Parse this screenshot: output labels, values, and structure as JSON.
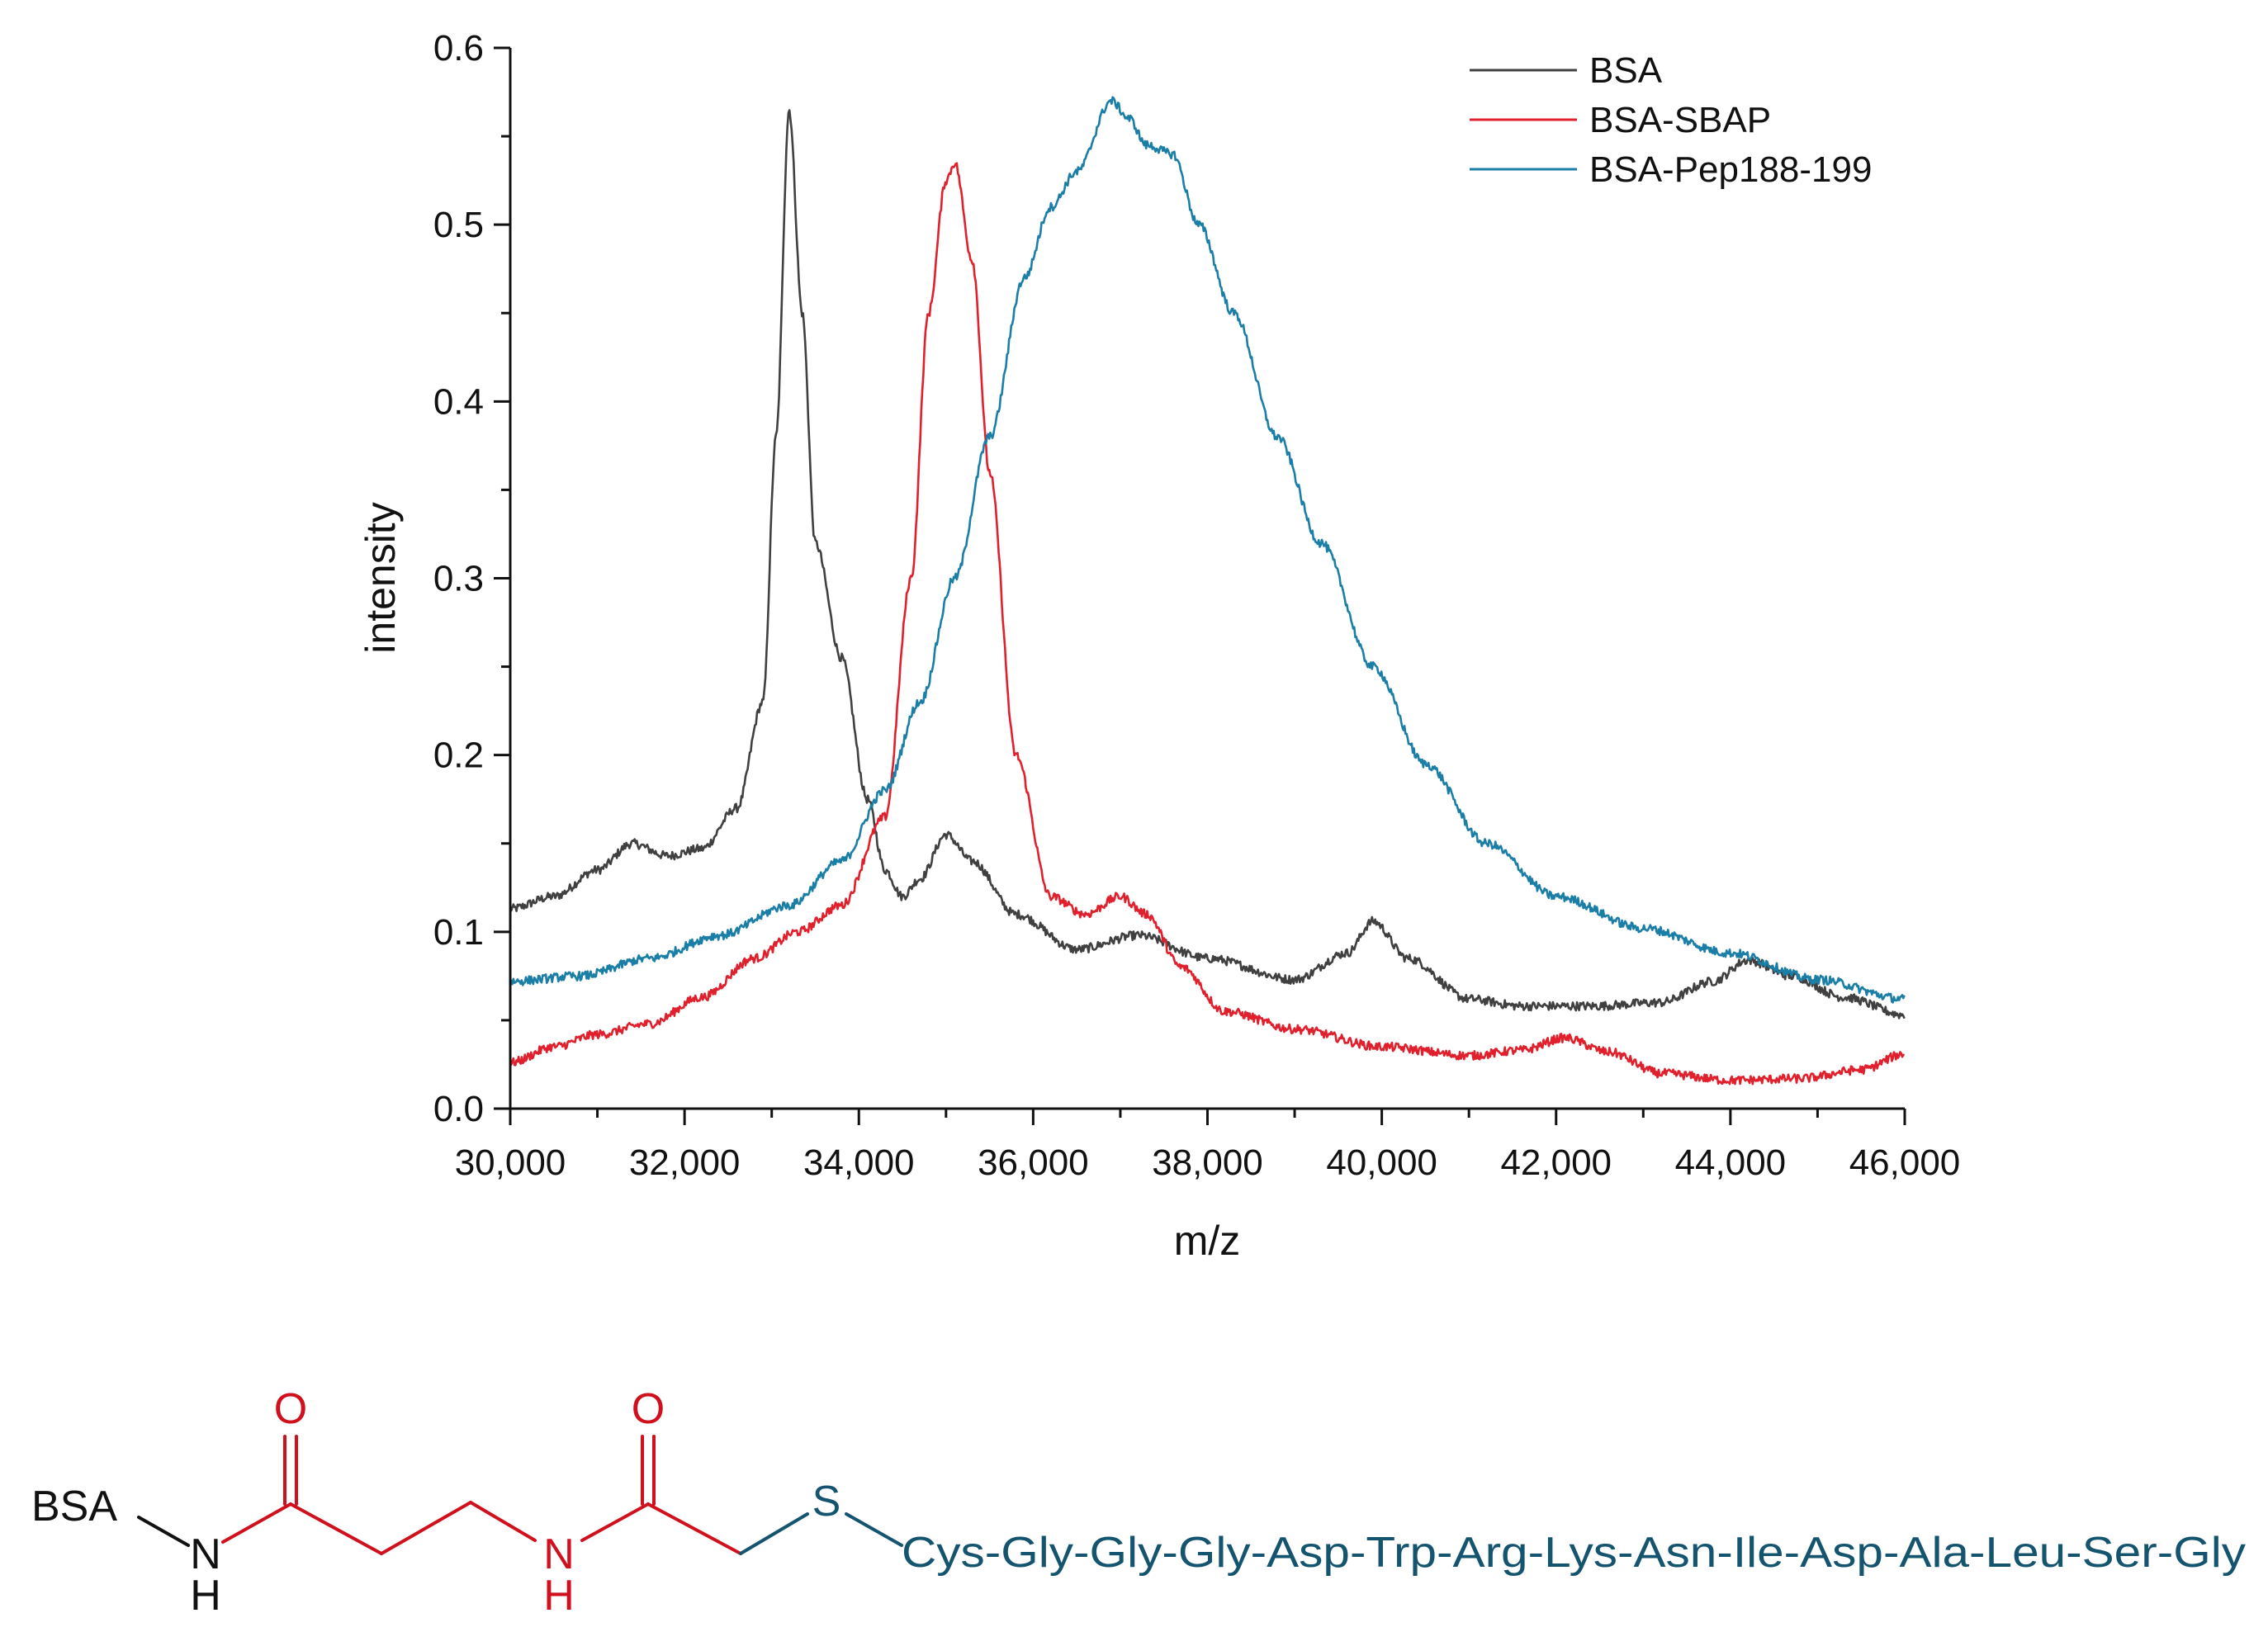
{
  "chart_data": {
    "type": "line",
    "title": "",
    "xlabel": "m/z",
    "ylabel": "intensity",
    "xlim": [
      30000,
      46000
    ],
    "ylim": [
      0,
      0.6
    ],
    "grid": false,
    "legend_position": "top-right",
    "xticks": [
      30000,
      32000,
      34000,
      36000,
      38000,
      40000,
      42000,
      44000,
      46000
    ],
    "xtick_labels": [
      "30,000",
      "32,000",
      "34,000",
      "36,000",
      "38,000",
      "40,000",
      "42,000",
      "44,000",
      "46,000"
    ],
    "yticks": [
      0.0,
      0.1,
      0.2,
      0.3,
      0.4,
      0.5,
      0.6
    ],
    "ytick_labels": [
      "0.0",
      "0.1",
      "0.2",
      "0.3",
      "0.4",
      "0.5",
      "0.6"
    ],
    "series": [
      {
        "name": "BSA",
        "color": "#404040",
        "x": [
          30000,
          30500,
          31000,
          31400,
          31800,
          32200,
          32600,
          32900,
          33050,
          33200,
          33350,
          33500,
          33800,
          34100,
          34300,
          34500,
          34700,
          35000,
          35300,
          35800,
          36500,
          37200,
          38000,
          39000,
          39600,
          39900,
          40300,
          41000,
          41600,
          42400,
          43200,
          43800,
          44200,
          44700,
          45300,
          46000
        ],
        "y": [
          0.113,
          0.12,
          0.135,
          0.15,
          0.143,
          0.147,
          0.17,
          0.23,
          0.38,
          0.565,
          0.45,
          0.32,
          0.255,
          0.175,
          0.135,
          0.12,
          0.13,
          0.155,
          0.14,
          0.11,
          0.09,
          0.098,
          0.085,
          0.073,
          0.088,
          0.106,
          0.085,
          0.062,
          0.058,
          0.058,
          0.06,
          0.072,
          0.084,
          0.075,
          0.063,
          0.053
        ]
      },
      {
        "name": "BSA-SBAP",
        "color": "#e0202c",
        "x": [
          30000,
          30500,
          31000,
          31600,
          32200,
          32800,
          33300,
          33800,
          34300,
          34600,
          34800,
          35000,
          35100,
          35300,
          35500,
          35800,
          36200,
          36600,
          37000,
          37300,
          37700,
          38200,
          39000,
          40000,
          41000,
          41600,
          42100,
          42600,
          43200,
          44000,
          44800,
          45500,
          46000
        ],
        "y": [
          0.026,
          0.035,
          0.042,
          0.048,
          0.063,
          0.085,
          0.1,
          0.115,
          0.165,
          0.3,
          0.45,
          0.525,
          0.535,
          0.48,
          0.36,
          0.2,
          0.12,
          0.11,
          0.12,
          0.11,
          0.08,
          0.055,
          0.045,
          0.035,
          0.03,
          0.033,
          0.04,
          0.032,
          0.02,
          0.016,
          0.017,
          0.022,
          0.031
        ]
      },
      {
        "name": "BSA-Pep188-199",
        "color": "#1b7ea6",
        "x": [
          30000,
          30800,
          31600,
          32400,
          33200,
          33800,
          34300,
          34700,
          35100,
          35500,
          35900,
          36200,
          36500,
          36900,
          37100,
          37300,
          37600,
          37900,
          38300,
          38800,
          39300,
          39900,
          40500,
          41200,
          42000,
          43000,
          44000,
          45000,
          46000
        ],
        "y": [
          0.072,
          0.075,
          0.085,
          0.098,
          0.115,
          0.14,
          0.18,
          0.23,
          0.3,
          0.38,
          0.47,
          0.51,
          0.53,
          0.57,
          0.56,
          0.545,
          0.54,
          0.5,
          0.45,
          0.38,
          0.32,
          0.25,
          0.195,
          0.15,
          0.12,
          0.102,
          0.088,
          0.073,
          0.062
        ]
      }
    ]
  },
  "structure": {
    "bsa_label": "BSA",
    "n1_label": "N",
    "h1_label": "H",
    "o1_label": "O",
    "n2_label": "N",
    "h2_label": "H",
    "o2_label": "O",
    "s_label": "S",
    "peptide_sequence": "Cys-Gly-Gly-Gly-Asp-Trp-Arg-Lys-Asn-Ile-Asp-Ala-Leu-Ser-Gly",
    "colors": {
      "black": "#111111",
      "red": "#d0101c",
      "teal": "#15546e"
    }
  }
}
